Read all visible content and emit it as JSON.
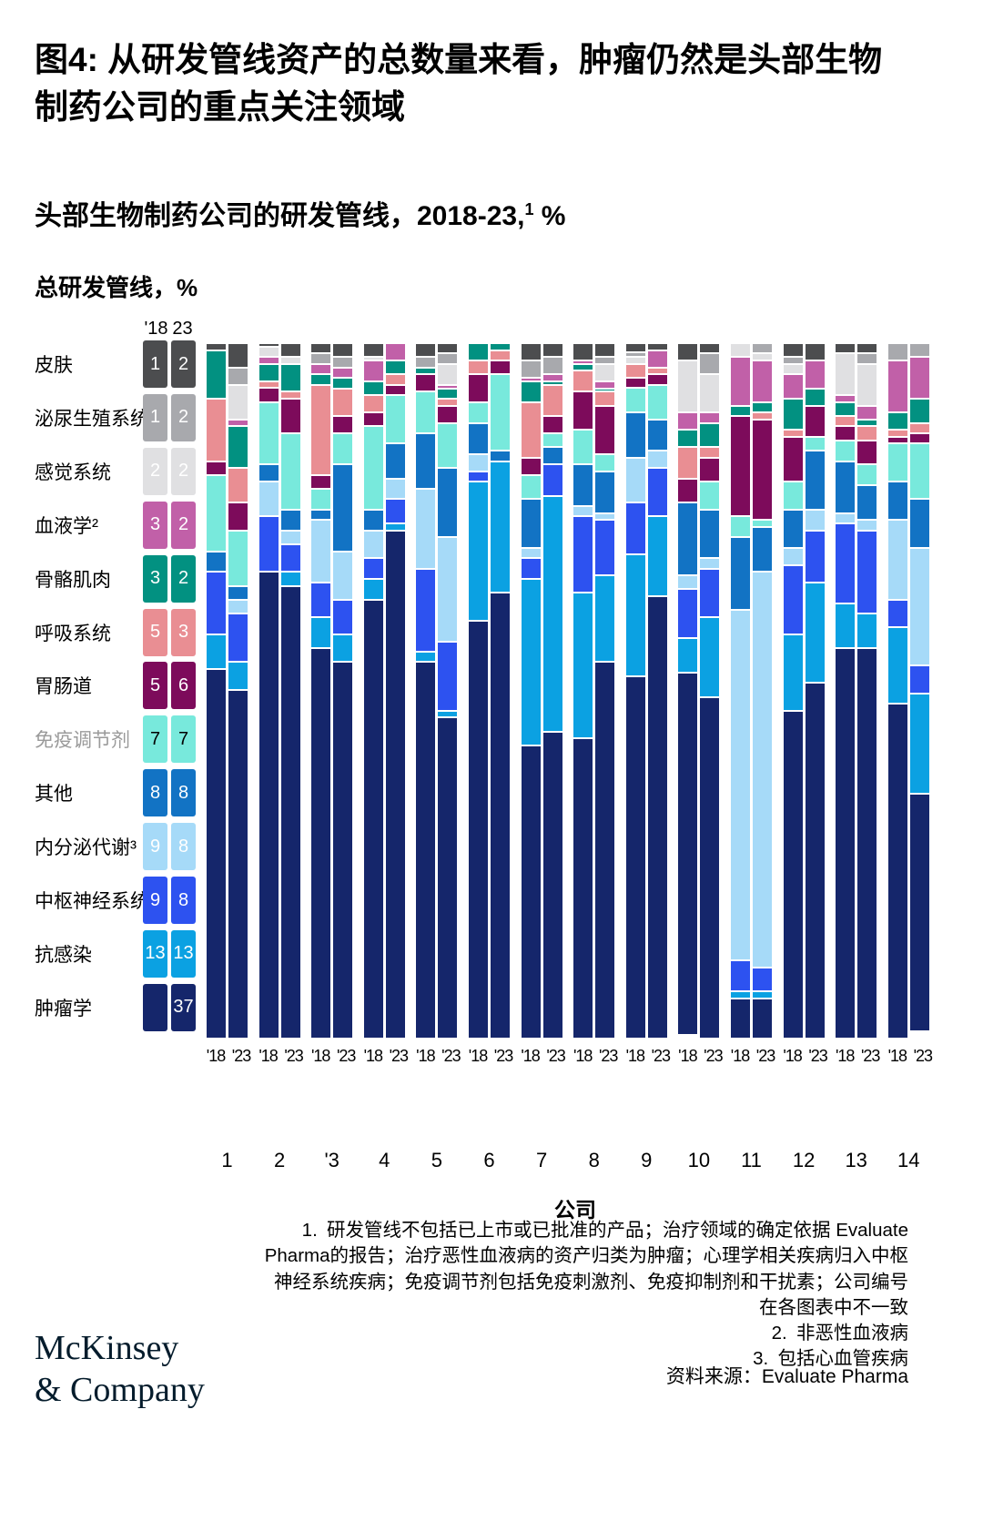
{
  "title": "图4: 从研发管线资产的总数量来看，肿瘤仍然是头部生物制药公司的重点关注领域",
  "subtitle": {
    "text": "头部生物制药公司的研发管线，2018-23,",
    "sup": "1",
    "suffix": " %"
  },
  "unit_label": "总研发管线，%",
  "x_axis_title": "公司",
  "footnotes": [
    {
      "marker": "1.",
      "text": "研发管线不包括已上市或已批准的产品；治疗领域的确定依据 Evaluate Pharma的报告；治疗恶性血液病的资产归类为肿瘤；心理学相关疾病归入中枢神经系统疾病；免疫调节剂包括免疫刺激剂、免疫抑制剂和干扰素；公司编号在各图表中不一致"
    },
    {
      "marker": "2.",
      "text": "非恶性血液病"
    },
    {
      "marker": "3.",
      "text": "包括心血管疾病"
    }
  ],
  "source": "资料来源：Evaluate Pharma",
  "logo": {
    "line1": "McKinsey",
    "line2": "& Company"
  },
  "chart_data": {
    "type": "bar",
    "variant": "100%-stacked-column",
    "years": [
      "'18",
      "'23"
    ],
    "legend_header": [
      "'18",
      "23"
    ],
    "ylim": [
      0,
      100
    ],
    "grid": false,
    "legend_position": "left",
    "categories": [
      {
        "name": "皮肤",
        "color": "#4c4d4f",
        "num_color": "#ffffff",
        "label_color": "#000000",
        "v18": "1",
        "v23": "2"
      },
      {
        "name": "泌尿生殖系统",
        "color": "#a8a9ad",
        "num_color": "#ffffff",
        "label_color": "#000000",
        "v18": "1",
        "v23": "2"
      },
      {
        "name": "感觉系统",
        "color": "#e0e0e2",
        "num_color": "#ffffff",
        "label_color": "#000000",
        "v18": "2",
        "v23": "2"
      },
      {
        "name": "血液学²",
        "color": "#c160a8",
        "num_color": "#ffffff",
        "label_color": "#000000",
        "v18": "3",
        "v23": "2"
      },
      {
        "name": "骨骼肌肉",
        "color": "#029181",
        "num_color": "#ffffff",
        "label_color": "#000000",
        "v18": "3",
        "v23": "2"
      },
      {
        "name": "呼吸系统",
        "color": "#e98e93",
        "num_color": "#ffffff",
        "label_color": "#000000",
        "v18": "5",
        "v23": "3"
      },
      {
        "name": "胃肠道",
        "color": "#7d0b5b",
        "num_color": "#ffffff",
        "label_color": "#000000",
        "v18": "5",
        "v23": "6"
      },
      {
        "name": "免疫调节剂",
        "color": "#78e9dc",
        "num_color": "#000000",
        "label_color": "#9a9a9a",
        "v18": "7",
        "v23": "7"
      },
      {
        "name": "其他",
        "color": "#1273c4",
        "num_color": "#ffffff",
        "label_color": "#000000",
        "v18": "8",
        "v23": "8"
      },
      {
        "name": "内分泌代谢³",
        "color": "#a6daf8",
        "num_color": "#ffffff",
        "label_color": "#000000",
        "v18": "9",
        "v23": "8"
      },
      {
        "name": "中枢神经系统",
        "color": "#2d52f0",
        "num_color": "#ffffff",
        "label_color": "#000000",
        "v18": "9",
        "v23": "8"
      },
      {
        "name": "抗感染",
        "color": "#0ba1e2",
        "num_color": "#ffffff",
        "label_color": "#000000",
        "v18": "13",
        "v23": "13"
      },
      {
        "name": "肿瘤学",
        "color": "#15266b",
        "num_color": "#ffffff",
        "label_color": "#000000",
        "v18": "",
        "v23": "37"
      }
    ],
    "category_order_note": "values arrays below run top-of-bar to bottom-of-bar, same order as categories list",
    "companies": [
      {
        "label": "1",
        "y18": [
          1,
          0,
          0,
          0,
          7,
          9,
          2,
          11,
          3,
          0,
          9,
          5,
          53
        ],
        "y23": [
          3.5,
          2.5,
          5,
          1,
          6,
          5,
          4,
          8,
          2,
          2,
          7,
          4,
          50
        ]
      },
      {
        "label": "2",
        "y18": [
          0.5,
          0,
          1.5,
          1,
          2.5,
          1,
          2,
          9,
          2.5,
          5,
          8,
          0,
          67
        ],
        "y23": [
          2,
          0,
          1,
          0,
          4,
          1,
          5,
          11,
          3,
          2,
          4,
          2,
          65
        ]
      },
      {
        "label": "'3",
        "y18": [
          1.5,
          1.5,
          0,
          1.5,
          1.5,
          13,
          2,
          3,
          1.5,
          9,
          5,
          4.5,
          56
        ],
        "y23": [
          2,
          1.5,
          0,
          1.5,
          1.5,
          4,
          2.5,
          4.5,
          12.5,
          7,
          5,
          4,
          54
        ]
      },
      {
        "label": "4",
        "y18": [
          2,
          0,
          0.5,
          3,
          2,
          2.5,
          2,
          12,
          3,
          4,
          3,
          3,
          63
        ],
        "y23": [
          0,
          0,
          0,
          2.5,
          2,
          1.5,
          1.5,
          7,
          5,
          3,
          3.5,
          1,
          73
        ]
      },
      {
        "label": "5",
        "y18": [
          2,
          1.5,
          0,
          0,
          1,
          0,
          2.5,
          6,
          8,
          11.5,
          12,
          1.5,
          54
        ],
        "y23": [
          1.5,
          1.5,
          3,
          0.5,
          1.5,
          1,
          2.5,
          6.5,
          10,
          15,
          10,
          1,
          46
        ]
      },
      {
        "label": "6",
        "y18": [
          0,
          0,
          0,
          0,
          2.5,
          2,
          4,
          3,
          4.5,
          2.5,
          1.5,
          20,
          60
        ],
        "y23": [
          0,
          0,
          0,
          0,
          1,
          1.5,
          2,
          11,
          1.5,
          0,
          0,
          19,
          64
        ]
      },
      {
        "label": "7",
        "y18": [
          2.5,
          2.5,
          0,
          0.5,
          3,
          8,
          2.5,
          3.5,
          7,
          1.5,
          3,
          24,
          42
        ],
        "y23": [
          2,
          2.5,
          0,
          1,
          0.5,
          4.5,
          2.5,
          2,
          2.5,
          0,
          4.5,
          34,
          44
        ]
      },
      {
        "label": "8",
        "y18": [
          2.5,
          0,
          0,
          0.5,
          1,
          3,
          5.5,
          5,
          6,
          1.5,
          11,
          21,
          43
        ],
        "y23": [
          2,
          1,
          2.5,
          1,
          0.5,
          2,
          7,
          2.5,
          6,
          1,
          8,
          12.5,
          54
        ]
      },
      {
        "label": "9",
        "y18": [
          1.3,
          0.7,
          1,
          0,
          0,
          2,
          1.5,
          3.5,
          6.5,
          6.5,
          7.5,
          17.5,
          52
        ],
        "y23": [
          1,
          0,
          0,
          2.5,
          0,
          1,
          1.5,
          5,
          4.5,
          2.5,
          7,
          11.5,
          63.5
        ]
      },
      {
        "label": "10",
        "y18": [
          2.5,
          0,
          7.5,
          2.5,
          2.5,
          4.5,
          3.5,
          0,
          10.5,
          2,
          7,
          5,
          52
        ],
        "y23": [
          1.5,
          3,
          5.5,
          1.5,
          3.5,
          1.5,
          3.5,
          4,
          7,
          1.5,
          7,
          11.5,
          49
        ]
      },
      {
        "label": "11",
        "y18": [
          0,
          0,
          2,
          7,
          1.5,
          0,
          14.5,
          3,
          10.5,
          50.5,
          4.5,
          1,
          5.5
        ],
        "y23": [
          0,
          1.5,
          1,
          6,
          1.5,
          1,
          14.5,
          1,
          6.5,
          57,
          3.5,
          1,
          5.5
        ]
      },
      {
        "label": "12",
        "y18": [
          2,
          1,
          1.5,
          3.5,
          4.5,
          1,
          6.5,
          4,
          5.5,
          2.5,
          10,
          11,
          47
        ],
        "y23": [
          2.5,
          0,
          0,
          4,
          2.5,
          0,
          4.5,
          2,
          8.5,
          3,
          7.5,
          14.5,
          51
        ]
      },
      {
        "label": "13",
        "y18": [
          1.5,
          0,
          6,
          1,
          2,
          1.5,
          2,
          3,
          7.5,
          1.5,
          11.5,
          6.5,
          56
        ],
        "y23": [
          1.5,
          1.5,
          6,
          2,
          1,
          2,
          3.5,
          3,
          5,
          1.5,
          12,
          5,
          56
        ]
      },
      {
        "label": "14",
        "y18": [
          0,
          2.5,
          0,
          7.5,
          2.5,
          1,
          1,
          5.5,
          5.5,
          11.5,
          4,
          11,
          48
        ],
        "y23": [
          0,
          2,
          0,
          6,
          3.5,
          1.5,
          1.5,
          8,
          7,
          17,
          4,
          14.5,
          34
        ]
      }
    ]
  }
}
